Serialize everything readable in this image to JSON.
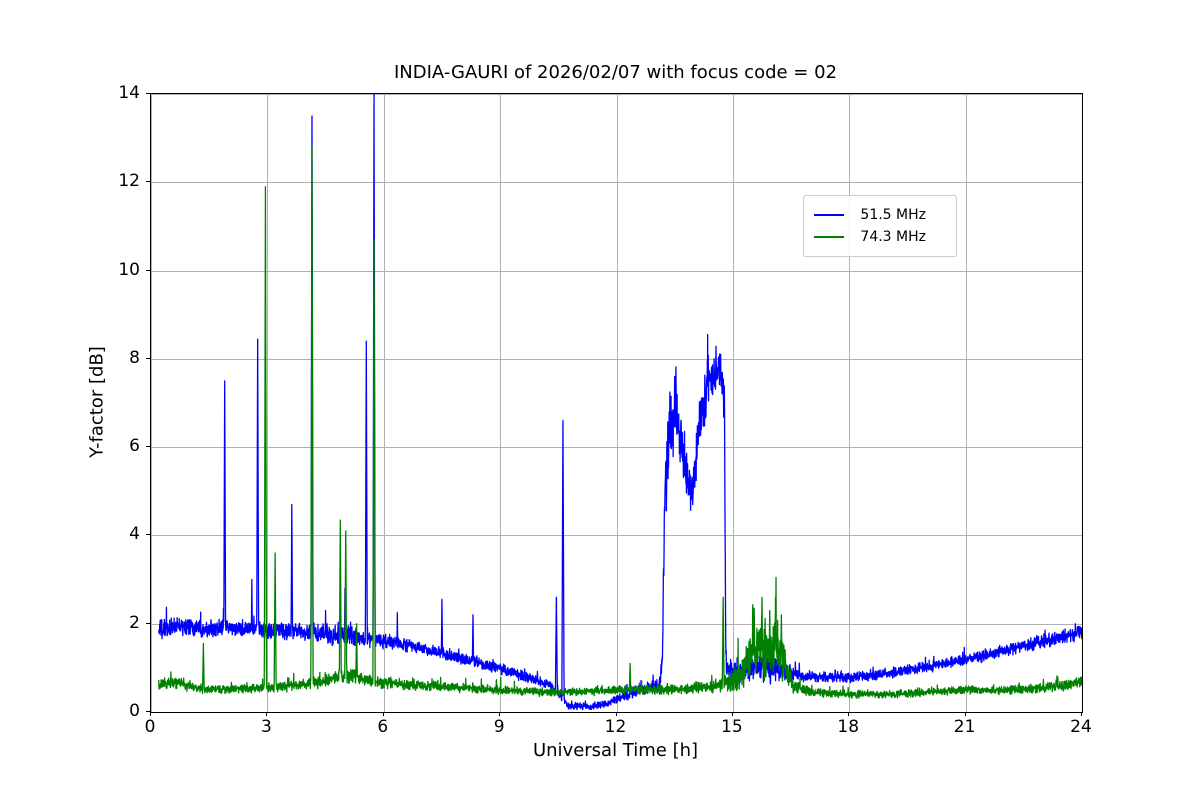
{
  "chart_data": {
    "type": "line",
    "title": "INDIA-GAURI of 2026/02/07 with focus code = 02",
    "xlabel": "Universal Time [h]",
    "ylabel": "Y-factor [dB]",
    "xlim": [
      0,
      24
    ],
    "ylim": [
      0,
      14
    ],
    "xticks": [
      0,
      3,
      6,
      9,
      12,
      15,
      18,
      21,
      24
    ],
    "yticks": [
      0,
      2,
      4,
      6,
      8,
      10,
      12,
      14
    ],
    "grid": true,
    "grid_color": "#b0b0b0",
    "legend_position": "upper right",
    "encoding_note": "Noisy time series approximated as baseline_keypoints [time_h, level_dB, noise_halfamplitude_dB] linearly interpolated with random noise, plus narrow spikes [time_h, peak_dB].",
    "series": [
      {
        "name": "51.5 MHz",
        "color": "#0000ff",
        "x_start": 0.2,
        "x_end": 24.0,
        "baseline_keypoints": [
          [
            0.2,
            1.85,
            0.25
          ],
          [
            0.8,
            1.95,
            0.25
          ],
          [
            1.6,
            1.9,
            0.22
          ],
          [
            2.4,
            1.88,
            0.2
          ],
          [
            3.2,
            1.85,
            0.22
          ],
          [
            4.0,
            1.8,
            0.25
          ],
          [
            4.8,
            1.75,
            0.3
          ],
          [
            5.4,
            1.68,
            0.25
          ],
          [
            6.0,
            1.6,
            0.2
          ],
          [
            6.6,
            1.52,
            0.18
          ],
          [
            7.2,
            1.4,
            0.16
          ],
          [
            8.0,
            1.2,
            0.15
          ],
          [
            8.6,
            1.08,
            0.15
          ],
          [
            9.2,
            0.92,
            0.14
          ],
          [
            9.8,
            0.75,
            0.13
          ],
          [
            10.3,
            0.6,
            0.14
          ],
          [
            10.55,
            0.35,
            0.12
          ],
          [
            10.75,
            0.15,
            0.1
          ],
          [
            11.3,
            0.12,
            0.09
          ],
          [
            11.8,
            0.2,
            0.1
          ],
          [
            12.2,
            0.35,
            0.12
          ],
          [
            12.6,
            0.5,
            0.13
          ],
          [
            13.1,
            0.6,
            0.15
          ],
          [
            13.18,
            1.2,
            0.3
          ],
          [
            13.25,
            5.2,
            0.9
          ],
          [
            13.4,
            6.3,
            1.0
          ],
          [
            13.55,
            6.8,
            0.9
          ],
          [
            13.7,
            5.8,
            0.9
          ],
          [
            13.85,
            5.3,
            0.8
          ],
          [
            13.95,
            5.0,
            0.5
          ],
          [
            14.1,
            6.2,
            0.8
          ],
          [
            14.25,
            7.0,
            0.7
          ],
          [
            14.4,
            7.6,
            0.7
          ],
          [
            14.55,
            7.7,
            0.5
          ],
          [
            14.7,
            7.8,
            0.45
          ],
          [
            14.78,
            7.2,
            0.8
          ],
          [
            14.82,
            1.2,
            0.3
          ],
          [
            14.9,
            0.95,
            0.25
          ],
          [
            15.2,
            0.95,
            0.3
          ],
          [
            15.6,
            1.0,
            0.35
          ],
          [
            16.0,
            1.0,
            0.38
          ],
          [
            16.35,
            0.95,
            0.3
          ],
          [
            16.6,
            0.82,
            0.18
          ],
          [
            17.0,
            0.8,
            0.14
          ],
          [
            18.0,
            0.78,
            0.13
          ],
          [
            19.0,
            0.88,
            0.14
          ],
          [
            20.0,
            1.02,
            0.14
          ],
          [
            21.0,
            1.18,
            0.15
          ],
          [
            22.0,
            1.38,
            0.16
          ],
          [
            23.0,
            1.6,
            0.18
          ],
          [
            23.6,
            1.72,
            0.2
          ],
          [
            24.0,
            1.8,
            0.2
          ]
        ],
        "spikes": [
          [
            1.9,
            7.5
          ],
          [
            2.6,
            3.0
          ],
          [
            2.75,
            8.45
          ],
          [
            3.63,
            4.7
          ],
          [
            4.15,
            13.5
          ],
          [
            4.5,
            2.3
          ],
          [
            5.0,
            2.8
          ],
          [
            5.55,
            8.4
          ],
          [
            5.75,
            14.0
          ],
          [
            6.35,
            2.25
          ],
          [
            7.5,
            2.55
          ],
          [
            8.3,
            2.2
          ],
          [
            10.45,
            2.6
          ],
          [
            10.62,
            6.6
          ],
          [
            13.5,
            7.6
          ],
          [
            14.35,
            8.55
          ]
        ]
      },
      {
        "name": "74.3 MHz",
        "color": "#008000",
        "x_start": 0.2,
        "x_end": 24.0,
        "baseline_keypoints": [
          [
            0.2,
            0.6,
            0.15
          ],
          [
            0.6,
            0.68,
            0.15
          ],
          [
            1.0,
            0.58,
            0.13
          ],
          [
            1.5,
            0.5,
            0.11
          ],
          [
            2.2,
            0.52,
            0.11
          ],
          [
            3.0,
            0.55,
            0.12
          ],
          [
            3.8,
            0.6,
            0.14
          ],
          [
            4.4,
            0.68,
            0.17
          ],
          [
            4.9,
            0.8,
            0.2
          ],
          [
            5.2,
            0.82,
            0.2
          ],
          [
            5.6,
            0.72,
            0.16
          ],
          [
            6.2,
            0.65,
            0.14
          ],
          [
            7.0,
            0.6,
            0.13
          ],
          [
            8.0,
            0.55,
            0.12
          ],
          [
            9.0,
            0.5,
            0.12
          ],
          [
            10.0,
            0.45,
            0.1
          ],
          [
            11.0,
            0.45,
            0.1
          ],
          [
            12.0,
            0.5,
            0.11
          ],
          [
            13.0,
            0.5,
            0.12
          ],
          [
            13.8,
            0.52,
            0.13
          ],
          [
            14.5,
            0.58,
            0.16
          ],
          [
            14.9,
            0.68,
            0.25
          ],
          [
            15.2,
            0.85,
            0.4
          ],
          [
            15.5,
            1.3,
            0.75
          ],
          [
            15.8,
            1.45,
            0.85
          ],
          [
            16.1,
            1.4,
            0.85
          ],
          [
            16.35,
            1.1,
            0.6
          ],
          [
            16.55,
            0.6,
            0.2
          ],
          [
            17.0,
            0.45,
            0.11
          ],
          [
            18.0,
            0.4,
            0.1
          ],
          [
            19.0,
            0.4,
            0.1
          ],
          [
            20.0,
            0.44,
            0.1
          ],
          [
            21.0,
            0.5,
            0.11
          ],
          [
            22.0,
            0.5,
            0.11
          ],
          [
            23.0,
            0.55,
            0.12
          ],
          [
            23.6,
            0.6,
            0.13
          ],
          [
            24.0,
            0.68,
            0.15
          ]
        ],
        "spikes": [
          [
            1.35,
            1.55
          ],
          [
            2.95,
            11.9
          ],
          [
            3.2,
            3.6
          ],
          [
            4.15,
            12.8
          ],
          [
            4.88,
            4.35
          ],
          [
            5.02,
            4.1
          ],
          [
            5.3,
            2.0
          ],
          [
            5.75,
            10.7
          ],
          [
            12.35,
            1.1
          ],
          [
            14.75,
            2.6
          ],
          [
            15.55,
            2.35
          ],
          [
            15.75,
            2.6
          ],
          [
            15.95,
            2.3
          ],
          [
            16.1,
            2.6
          ],
          [
            16.25,
            2.2
          ]
        ]
      }
    ]
  }
}
